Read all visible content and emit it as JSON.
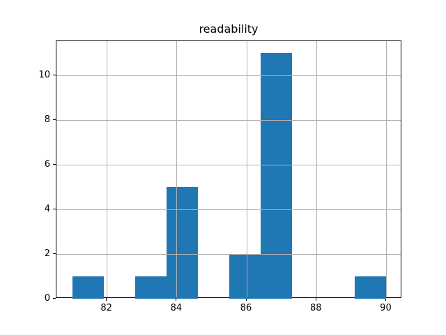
{
  "title": "readability",
  "chart_data": {
    "type": "bar",
    "subtype": "histogram",
    "title": "readability",
    "xlabel": "",
    "ylabel": "",
    "bin_edges": [
      81.0,
      81.9,
      82.8,
      83.7,
      84.6,
      85.5,
      86.4,
      87.3,
      88.2,
      89.1,
      90.0
    ],
    "counts": [
      1,
      0,
      1,
      5,
      0,
      2,
      11,
      0,
      0,
      1
    ],
    "x_ticks": [
      82,
      84,
      86,
      88,
      90
    ],
    "y_ticks": [
      0,
      2,
      4,
      6,
      8,
      10
    ],
    "xlim": [
      80.55,
      90.45
    ],
    "ylim": [
      0,
      11.55
    ],
    "grid": true,
    "legend": false,
    "bar_color": "#1f77b4",
    "grid_color": "#b0b0b0",
    "axis_color": "#000000",
    "text_color": "#000000",
    "background_color": "#ffffff"
  }
}
